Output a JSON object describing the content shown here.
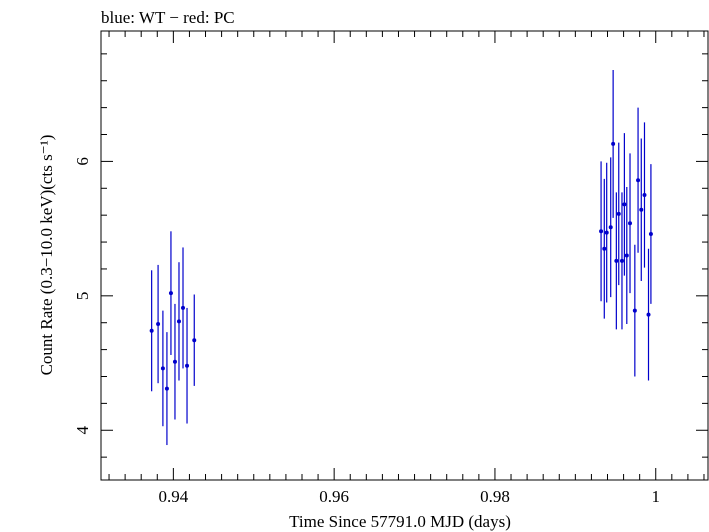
{
  "chart_data": {
    "type": "scatter",
    "title": "blue: WT − red: PC",
    "xlabel": "Time Since 57791.0 MJD (days)",
    "ylabel": "Count Rate (0.3−10.0 keV)(cts s⁻¹)",
    "xlim": [
      0.931,
      1.0065
    ],
    "ylim": [
      3.63,
      6.97
    ],
    "xticks_major": [
      0.94,
      0.96,
      0.98,
      1.0
    ],
    "xtick_labels": [
      "0.94",
      "0.96",
      "0.98",
      "1"
    ],
    "yticks_major": [
      4,
      5,
      6
    ],
    "ytick_labels": [
      "4",
      "5",
      "6"
    ],
    "grid": false,
    "series": [
      {
        "name": "WT",
        "color": "#0000cc",
        "points": [
          {
            "x": 0.9373,
            "y": 4.74,
            "yerr": 0.45
          },
          {
            "x": 0.9381,
            "y": 4.79,
            "yerr": 0.44
          },
          {
            "x": 0.9387,
            "y": 4.46,
            "yerr": 0.43
          },
          {
            "x": 0.9392,
            "y": 4.31,
            "yerr": 0.42
          },
          {
            "x": 0.9397,
            "y": 5.02,
            "yerr": 0.46
          },
          {
            "x": 0.9402,
            "y": 4.51,
            "yerr": 0.43
          },
          {
            "x": 0.9407,
            "y": 4.81,
            "yerr": 0.44
          },
          {
            "x": 0.9412,
            "y": 4.91,
            "yerr": 0.45
          },
          {
            "x": 0.9417,
            "y": 4.48,
            "yerr": 0.43
          },
          {
            "x": 0.9426,
            "y": 4.67,
            "yerr": 0.34
          }
        ]
      },
      {
        "name": "WT",
        "color": "#0000cc",
        "points": [
          {
            "x": 0.9932,
            "y": 5.48,
            "yerr": 0.52
          },
          {
            "x": 0.9936,
            "y": 5.35,
            "yerr": 0.52
          },
          {
            "x": 0.9939,
            "y": 5.47,
            "yerr": 0.52
          },
          {
            "x": 0.9944,
            "y": 5.51,
            "yerr": 0.52
          },
          {
            "x": 0.9947,
            "y": 6.13,
            "yerr": 0.55
          },
          {
            "x": 0.9951,
            "y": 5.26,
            "yerr": 0.51
          },
          {
            "x": 0.9954,
            "y": 5.61,
            "yerr": 0.53
          },
          {
            "x": 0.9958,
            "y": 5.26,
            "yerr": 0.51
          },
          {
            "x": 0.9961,
            "y": 5.68,
            "yerr": 0.53
          },
          {
            "x": 0.9964,
            "y": 5.3,
            "yerr": 0.51
          },
          {
            "x": 0.9968,
            "y": 5.54,
            "yerr": 0.52
          },
          {
            "x": 0.9974,
            "y": 4.89,
            "yerr": 0.49
          },
          {
            "x": 0.9978,
            "y": 5.86,
            "yerr": 0.54
          },
          {
            "x": 0.9982,
            "y": 5.64,
            "yerr": 0.53
          },
          {
            "x": 0.9986,
            "y": 5.75,
            "yerr": 0.54
          },
          {
            "x": 0.9991,
            "y": 4.86,
            "yerr": 0.49
          },
          {
            "x": 0.9994,
            "y": 5.46,
            "yerr": 0.52
          }
        ]
      }
    ]
  }
}
